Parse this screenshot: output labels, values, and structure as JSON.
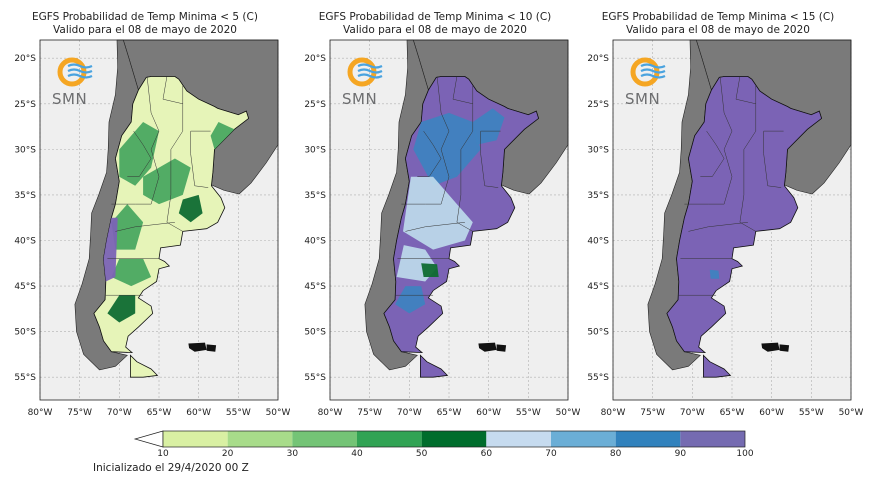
{
  "panels": [
    {
      "title": "EGFS Probabilidad de Temp Minima < 5 (C)",
      "subtitle": "Valido para el 08 de mayo de 2020",
      "dominant_fill": "#e6f4b8",
      "accent_fill": "#4aa860",
      "dark_fill": "#0f6b32",
      "edge_fill": "#7b63b5"
    },
    {
      "title": "EGFS Probabilidad de Temp Minima < 10 (C)",
      "subtitle": "Valido para el 08 de mayo de 2020",
      "dominant_fill": "#7b63b5",
      "accent_fill": "#bcd7ea",
      "dark_fill": "#3f82c0",
      "edge_fill": "#0f6b32"
    },
    {
      "title": "EGFS Probabilidad de Temp Minima < 15 (C)",
      "subtitle": "Valido para el 08 de mayo de 2020",
      "dominant_fill": "#7b63b5",
      "accent_fill": "#7b63b5",
      "dark_fill": "#3f82c0",
      "edge_fill": "#7b63b5"
    }
  ],
  "map": {
    "lat_labels": [
      "20°S",
      "25°S",
      "30°S",
      "35°S",
      "40°S",
      "45°S",
      "50°S",
      "55°S"
    ],
    "lon_labels": [
      "80°W",
      "75°W",
      "70°W",
      "65°W",
      "60°W",
      "55°W",
      "50°W"
    ],
    "lat_values": [
      -20,
      -25,
      -30,
      -35,
      -40,
      -45,
      -50,
      -55
    ],
    "lon_values": [
      -80,
      -75,
      -70,
      -65,
      -60,
      -55,
      -50
    ],
    "ocean_color": "#efefef",
    "land_color": "#7a7a7a",
    "logo_text": "SMN"
  },
  "colorbar": {
    "ticks": [
      "10",
      "20",
      "30",
      "40",
      "50",
      "60",
      "70",
      "80",
      "90",
      "100"
    ],
    "colors": [
      "#d9f0a3",
      "#a8dc8a",
      "#74c476",
      "#31a354",
      "#006d2c",
      "#c6dbef",
      "#6baed6",
      "#3182bd",
      "#756bb1"
    ],
    "under_color": "#ffffff"
  },
  "init_label": "Inicializado el 29/4/2020 00 Z"
}
